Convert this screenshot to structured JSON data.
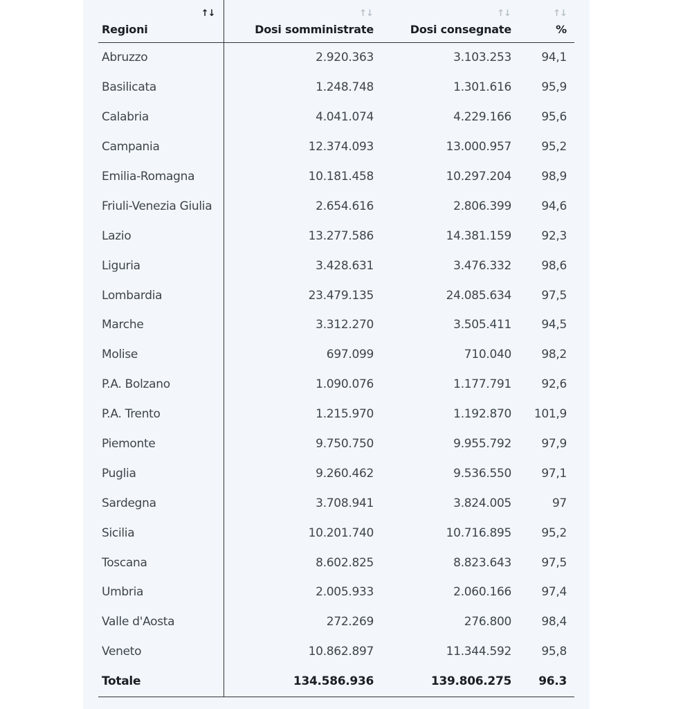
{
  "headers": {
    "region": "Regioni",
    "administered": "Dosi somministrate",
    "delivered": "Dosi consegnate",
    "percent": "%"
  },
  "sort_icon": "↑↓",
  "rows": [
    {
      "region": "Abruzzo",
      "administered": "2.920.363",
      "delivered": "3.103.253",
      "percent": "94,1"
    },
    {
      "region": "Basilicata",
      "administered": "1.248.748",
      "delivered": "1.301.616",
      "percent": "95,9"
    },
    {
      "region": "Calabria",
      "administered": "4.041.074",
      "delivered": "4.229.166",
      "percent": "95,6"
    },
    {
      "region": "Campania",
      "administered": "12.374.093",
      "delivered": "13.000.957",
      "percent": "95,2"
    },
    {
      "region": "Emilia-Romagna",
      "administered": "10.181.458",
      "delivered": "10.297.204",
      "percent": "98,9"
    },
    {
      "region": "Friuli-Venezia Giulia",
      "administered": "2.654.616",
      "delivered": "2.806.399",
      "percent": "94,6"
    },
    {
      "region": "Lazio",
      "administered": "13.277.586",
      "delivered": "14.381.159",
      "percent": "92,3"
    },
    {
      "region": "Liguria",
      "administered": "3.428.631",
      "delivered": "3.476.332",
      "percent": "98,6"
    },
    {
      "region": "Lombardia",
      "administered": "23.479.135",
      "delivered": "24.085.634",
      "percent": "97,5"
    },
    {
      "region": "Marche",
      "administered": "3.312.270",
      "delivered": "3.505.411",
      "percent": "94,5"
    },
    {
      "region": "Molise",
      "administered": "697.099",
      "delivered": "710.040",
      "percent": "98,2"
    },
    {
      "region": "P.A. Bolzano",
      "administered": "1.090.076",
      "delivered": "1.177.791",
      "percent": "92,6"
    },
    {
      "region": "P.A. Trento",
      "administered": "1.215.970",
      "delivered": "1.192.870",
      "percent": "101,9"
    },
    {
      "region": "Piemonte",
      "administered": "9.750.750",
      "delivered": "9.955.792",
      "percent": "97,9"
    },
    {
      "region": "Puglia",
      "administered": "9.260.462",
      "delivered": "9.536.550",
      "percent": "97,1"
    },
    {
      "region": "Sardegna",
      "administered": "3.708.941",
      "delivered": "3.824.005",
      "percent": "97"
    },
    {
      "region": "Sicilia",
      "administered": "10.201.740",
      "delivered": "10.716.895",
      "percent": "95,2"
    },
    {
      "region": "Toscana",
      "administered": "8.602.825",
      "delivered": "8.823.643",
      "percent": "97,5"
    },
    {
      "region": "Umbria",
      "administered": "2.005.933",
      "delivered": "2.060.166",
      "percent": "97,4"
    },
    {
      "region": "Valle d'Aosta",
      "administered": "272.269",
      "delivered": "276.800",
      "percent": "98,4"
    },
    {
      "region": "Veneto",
      "administered": "10.862.897",
      "delivered": "11.344.592",
      "percent": "95,8"
    }
  ],
  "total": {
    "label": "Totale",
    "administered": "134.586.936",
    "delivered": "139.806.275",
    "percent": "96.3"
  }
}
